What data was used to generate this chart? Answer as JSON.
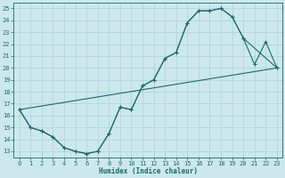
{
  "xlabel": "Humidex (Indice chaleur)",
  "xlim": [
    -0.5,
    23.5
  ],
  "ylim": [
    12.5,
    25.5
  ],
  "xticks": [
    0,
    1,
    2,
    3,
    4,
    5,
    6,
    7,
    8,
    9,
    10,
    11,
    12,
    13,
    14,
    15,
    16,
    17,
    18,
    19,
    20,
    21,
    22,
    23
  ],
  "yticks": [
    13,
    14,
    15,
    16,
    17,
    18,
    19,
    20,
    21,
    22,
    23,
    24,
    25
  ],
  "bg_color": "#cce8ed",
  "grid_color": "#aad0d8",
  "line_color": "#1a6b6b",
  "curve1_x": [
    0,
    1,
    2,
    3,
    4,
    5,
    6,
    7,
    8,
    9,
    10,
    11,
    12,
    13,
    14,
    15,
    16,
    17,
    18,
    19,
    20,
    21,
    22,
    23
  ],
  "curve1_y": [
    16.5,
    15.0,
    14.7,
    14.2,
    13.3,
    13.0,
    12.8,
    13.0,
    14.5,
    16.7,
    16.5,
    18.5,
    19.0,
    20.8,
    21.3,
    23.8,
    24.8,
    24.8,
    25.0,
    24.3,
    22.5,
    20.3,
    22.2,
    20.0
  ],
  "curve2_x": [
    0,
    1,
    2,
    3,
    4,
    5,
    6,
    7,
    8,
    9,
    10,
    11,
    12,
    13,
    14,
    15,
    16,
    17,
    18,
    19,
    20,
    23
  ],
  "curve2_y": [
    16.5,
    15.0,
    14.7,
    14.2,
    13.3,
    13.0,
    12.8,
    13.0,
    14.5,
    16.7,
    16.5,
    18.5,
    19.0,
    20.8,
    21.3,
    23.8,
    24.8,
    24.8,
    25.0,
    24.3,
    22.5,
    20.0
  ],
  "line_x": [
    0,
    23
  ],
  "line_y": [
    16.5,
    20.0
  ]
}
